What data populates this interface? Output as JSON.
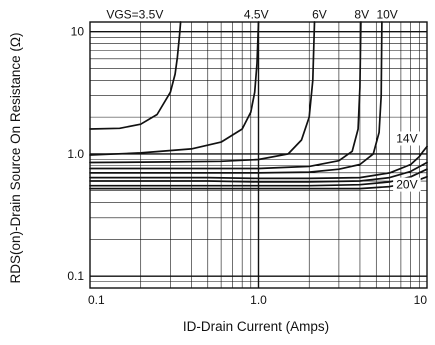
{
  "chart_data": {
    "type": "line",
    "xscale": "log",
    "yscale": "log",
    "xlim": [
      0.1,
      10
    ],
    "ylim": [
      0.08,
      12
    ],
    "grid": true,
    "xlabel": "ID-Drain Current (Amps)",
    "ylabel": "RDS(on)-Drain Source On Resistance (Ω)",
    "xticks": [
      {
        "value": 0.1,
        "label": "0.1"
      },
      {
        "value": 1,
        "label": "1.0"
      },
      {
        "value": 10,
        "label": "10"
      }
    ],
    "yticks": [
      {
        "value": 0.1,
        "label": "0.1"
      },
      {
        "value": 1,
        "label": "1.0"
      },
      {
        "value": 10,
        "label": "10"
      }
    ],
    "series": [
      {
        "name": "VGS=3.5V",
        "x": [
          0.1,
          0.15,
          0.2,
          0.25,
          0.3,
          0.32,
          0.33,
          0.34,
          0.345
        ],
        "y": [
          1.6,
          1.62,
          1.75,
          2.1,
          3.2,
          4.5,
          6.2,
          9.5,
          12
        ]
      },
      {
        "name": "4.5V",
        "x": [
          0.1,
          0.2,
          0.4,
          0.6,
          0.8,
          0.9,
          0.95,
          0.98,
          1.0
        ],
        "y": [
          0.98,
          1.02,
          1.1,
          1.25,
          1.6,
          2.2,
          3.2,
          5.5,
          12
        ]
      },
      {
        "name": "6V",
        "x": [
          0.1,
          0.3,
          0.6,
          1.0,
          1.5,
          1.8,
          2.0,
          2.1,
          2.15
        ],
        "y": [
          0.85,
          0.86,
          0.87,
          0.9,
          1.0,
          1.3,
          2.0,
          4.0,
          12
        ]
      },
      {
        "name": "8V",
        "x": [
          0.1,
          0.5,
          1.0,
          2.0,
          3.0,
          3.6,
          3.9,
          4.0,
          4.05
        ],
        "y": [
          0.76,
          0.76,
          0.76,
          0.79,
          0.88,
          1.05,
          1.6,
          3.5,
          12
        ]
      },
      {
        "name": "10V",
        "x": [
          0.1,
          0.5,
          1.0,
          2.0,
          3.0,
          4.0,
          4.8,
          5.2,
          5.35,
          5.4
        ],
        "y": [
          0.7,
          0.7,
          0.7,
          0.71,
          0.75,
          0.82,
          1.0,
          1.5,
          3.0,
          12
        ]
      },
      {
        "name": "14V",
        "x": [
          0.1,
          0.5,
          1.0,
          2.0,
          4.0,
          6.0,
          8.0,
          9.0,
          9.5,
          10
        ],
        "y": [
          0.64,
          0.64,
          0.63,
          0.63,
          0.64,
          0.7,
          0.82,
          0.95,
          1.05,
          1.15
        ]
      },
      {
        "name": "",
        "x": [
          0.1,
          0.5,
          1.0,
          2.0,
          4.0,
          6.0,
          8.0,
          10
        ],
        "y": [
          0.6,
          0.6,
          0.59,
          0.59,
          0.6,
          0.64,
          0.72,
          0.85
        ]
      },
      {
        "name": "",
        "x": [
          0.1,
          0.5,
          1.0,
          2.0,
          4.0,
          6.0,
          8.0,
          10
        ],
        "y": [
          0.55,
          0.55,
          0.55,
          0.55,
          0.56,
          0.59,
          0.65,
          0.75
        ]
      },
      {
        "name": "20V",
        "x": [
          0.1,
          0.5,
          1.0,
          2.0,
          4.0,
          6.0,
          8.0,
          10
        ],
        "y": [
          0.52,
          0.52,
          0.52,
          0.52,
          0.52,
          0.54,
          0.58,
          0.65
        ]
      }
    ],
    "curve_labels": [
      {
        "text": "VGS=3.5V",
        "x": 0.125,
        "y": 12.8,
        "anchor": "start"
      },
      {
        "text": "4.5V",
        "x": 0.97,
        "y": 12.8,
        "anchor": "middle"
      },
      {
        "text": "6V",
        "x": 2.3,
        "y": 12.8,
        "anchor": "middle"
      },
      {
        "text": "8V",
        "x": 4.1,
        "y": 12.8,
        "anchor": "middle"
      },
      {
        "text": "10V",
        "x": 5.8,
        "y": 12.8,
        "anchor": "middle"
      },
      {
        "text": "14V",
        "x": 7.6,
        "y": 1.24,
        "anchor": "middle"
      },
      {
        "text": "20V",
        "x": 7.6,
        "y": 0.52,
        "anchor": "middle"
      }
    ]
  }
}
